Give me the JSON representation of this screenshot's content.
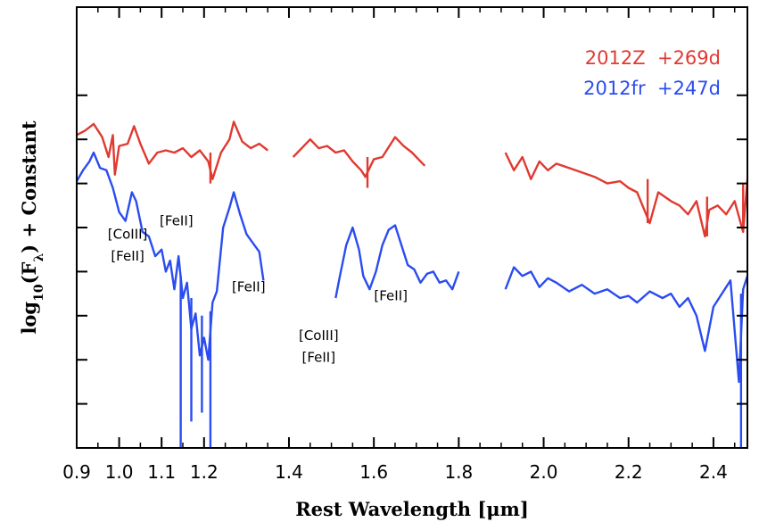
{
  "chart_data": {
    "type": "line",
    "xlabel": "Rest Wavelength [μm]",
    "ylabel": "log10(Fλ) + Constant",
    "ylabel_parts": {
      "pre": "log",
      "sub": "10",
      "mid": "(F",
      "sub2": "λ",
      "post": ") + Constant"
    },
    "xlim": [
      0.9,
      2.48
    ],
    "ylim": [
      0,
      10
    ],
    "x_ticks": [
      0.9,
      1.0,
      1.1,
      1.2,
      1.4,
      1.6,
      1.8,
      2.0,
      2.2,
      2.4
    ],
    "x_tick_labels": [
      "0.9",
      "1.0",
      "1.1",
      "1.2",
      "1.4",
      "1.6",
      "1.8",
      "2.0",
      "2.2",
      "2.4"
    ],
    "y_ticks": [
      1,
      2,
      3,
      4,
      5,
      6,
      7,
      8
    ],
    "series": [
      {
        "name": "2012Z  +269d",
        "color": "#e03a31",
        "segments": [
          [
            [
              0.9,
              7.1
            ],
            [
              0.92,
              7.2
            ],
            [
              0.94,
              7.35
            ],
            [
              0.96,
              7.05
            ],
            [
              0.975,
              6.6
            ],
            [
              0.985,
              7.1
            ],
            [
              0.99,
              6.2
            ],
            [
              1.0,
              6.85
            ],
            [
              1.02,
              6.9
            ],
            [
              1.035,
              7.3
            ],
            [
              1.05,
              6.9
            ],
            [
              1.07,
              6.45
            ],
            [
              1.09,
              6.7
            ],
            [
              1.11,
              6.75
            ],
            [
              1.13,
              6.7
            ],
            [
              1.15,
              6.8
            ],
            [
              1.17,
              6.6
            ],
            [
              1.19,
              6.75
            ],
            [
              1.21,
              6.5
            ],
            [
              1.22,
              6.1
            ],
            [
              1.24,
              6.7
            ],
            [
              1.26,
              7.0
            ],
            [
              1.27,
              7.4
            ],
            [
              1.29,
              6.95
            ],
            [
              1.31,
              6.8
            ],
            [
              1.33,
              6.9
            ],
            [
              1.35,
              6.75
            ]
          ],
          [
            [
              1.41,
              6.6
            ],
            [
              1.43,
              6.8
            ],
            [
              1.45,
              7.0
            ],
            [
              1.47,
              6.8
            ],
            [
              1.49,
              6.85
            ],
            [
              1.51,
              6.7
            ],
            [
              1.53,
              6.75
            ],
            [
              1.55,
              6.5
            ],
            [
              1.57,
              6.3
            ],
            [
              1.58,
              6.15
            ],
            [
              1.6,
              6.55
            ],
            [
              1.62,
              6.6
            ],
            [
              1.64,
              6.9
            ],
            [
              1.65,
              7.05
            ],
            [
              1.67,
              6.85
            ],
            [
              1.69,
              6.7
            ],
            [
              1.71,
              6.5
            ],
            [
              1.72,
              6.4
            ]
          ],
          [
            [
              1.91,
              6.7
            ],
            [
              1.93,
              6.3
            ],
            [
              1.95,
              6.6
            ],
            [
              1.97,
              6.1
            ],
            [
              1.99,
              6.5
            ],
            [
              2.01,
              6.3
            ],
            [
              2.03,
              6.45
            ],
            [
              2.06,
              6.35
            ],
            [
              2.09,
              6.25
            ],
            [
              2.12,
              6.15
            ],
            [
              2.15,
              6.0
            ],
            [
              2.18,
              6.05
            ],
            [
              2.2,
              5.9
            ],
            [
              2.22,
              5.8
            ],
            [
              2.25,
              5.1
            ],
            [
              2.27,
              5.8
            ],
            [
              2.3,
              5.6
            ],
            [
              2.32,
              5.5
            ],
            [
              2.34,
              5.3
            ],
            [
              2.36,
              5.6
            ],
            [
              2.38,
              4.8
            ],
            [
              2.39,
              5.4
            ],
            [
              2.41,
              5.5
            ],
            [
              2.43,
              5.3
            ],
            [
              2.45,
              5.6
            ],
            [
              2.47,
              4.9
            ],
            [
              2.48,
              6.1
            ]
          ]
        ]
      },
      {
        "name": "2012fr  +247d",
        "color": "#2a4cf0",
        "segments": [
          [
            [
              0.9,
              6.05
            ],
            [
              0.915,
              6.3
            ],
            [
              0.93,
              6.5
            ],
            [
              0.94,
              6.7
            ],
            [
              0.955,
              6.35
            ],
            [
              0.97,
              6.3
            ],
            [
              0.985,
              5.9
            ],
            [
              1.0,
              5.35
            ],
            [
              1.015,
              5.15
            ],
            [
              1.03,
              5.8
            ],
            [
              1.04,
              5.6
            ],
            [
              1.055,
              4.9
            ],
            [
              1.07,
              4.8
            ],
            [
              1.085,
              4.35
            ],
            [
              1.1,
              4.5
            ],
            [
              1.11,
              4.0
            ],
            [
              1.12,
              4.25
            ],
            [
              1.13,
              3.6
            ],
            [
              1.14,
              4.35
            ],
            [
              1.15,
              3.4
            ],
            [
              1.16,
              3.75
            ],
            [
              1.17,
              2.7
            ],
            [
              1.18,
              3.05
            ],
            [
              1.19,
              2.1
            ],
            [
              1.2,
              2.5
            ],
            [
              1.21,
              2.0
            ],
            [
              1.22,
              3.3
            ],
            [
              1.23,
              3.55
            ],
            [
              1.245,
              5.0
            ],
            [
              1.26,
              5.45
            ],
            [
              1.27,
              5.8
            ],
            [
              1.285,
              5.3
            ],
            [
              1.3,
              4.85
            ],
            [
              1.315,
              4.65
            ],
            [
              1.33,
              4.45
            ],
            [
              1.34,
              3.8
            ]
          ],
          [
            [
              1.51,
              3.4
            ],
            [
              1.52,
              3.9
            ],
            [
              1.535,
              4.6
            ],
            [
              1.55,
              5.0
            ],
            [
              1.565,
              4.5
            ],
            [
              1.575,
              3.9
            ],
            [
              1.59,
              3.6
            ],
            [
              1.605,
              4.0
            ],
            [
              1.62,
              4.6
            ],
            [
              1.635,
              4.95
            ],
            [
              1.65,
              5.05
            ],
            [
              1.665,
              4.6
            ],
            [
              1.68,
              4.15
            ],
            [
              1.695,
              4.05
            ],
            [
              1.71,
              3.75
            ],
            [
              1.725,
              3.95
            ],
            [
              1.74,
              4.0
            ],
            [
              1.755,
              3.75
            ],
            [
              1.77,
              3.8
            ],
            [
              1.785,
              3.6
            ],
            [
              1.8,
              4.0
            ]
          ],
          [
            [
              1.91,
              3.6
            ],
            [
              1.93,
              4.1
            ],
            [
              1.95,
              3.9
            ],
            [
              1.97,
              4.0
            ],
            [
              1.99,
              3.65
            ],
            [
              2.01,
              3.85
            ],
            [
              2.03,
              3.75
            ],
            [
              2.06,
              3.55
            ],
            [
              2.09,
              3.7
            ],
            [
              2.12,
              3.5
            ],
            [
              2.15,
              3.6
            ],
            [
              2.18,
              3.4
            ],
            [
              2.2,
              3.45
            ],
            [
              2.22,
              3.3
            ],
            [
              2.25,
              3.55
            ],
            [
              2.28,
              3.4
            ],
            [
              2.3,
              3.5
            ],
            [
              2.32,
              3.2
            ],
            [
              2.34,
              3.4
            ],
            [
              2.36,
              3.0
            ],
            [
              2.38,
              2.2
            ],
            [
              2.4,
              3.2
            ],
            [
              2.42,
              3.5
            ],
            [
              2.44,
              3.8
            ],
            [
              2.46,
              1.5
            ],
            [
              2.47,
              3.6
            ],
            [
              2.48,
              3.9
            ]
          ]
        ]
      }
    ],
    "dips": [
      {
        "series": 0,
        "x": 1.215,
        "y_top": 6.7,
        "y_bottom": 6.0
      },
      {
        "series": 0,
        "x": 1.585,
        "y_top": 6.6,
        "y_bottom": 5.9
      },
      {
        "series": 0,
        "x": 2.245,
        "y_top": 6.1,
        "y_bottom": 5.1
      },
      {
        "series": 0,
        "x": 2.385,
        "y_top": 5.7,
        "y_bottom": 4.8
      },
      {
        "series": 0,
        "x": 2.47,
        "y_top": 6.0,
        "y_bottom": 4.9
      },
      {
        "series": 1,
        "x": 1.145,
        "y_top": 3.9,
        "y_bottom": 0.0
      },
      {
        "series": 1,
        "x": 1.17,
        "y_top": 3.4,
        "y_bottom": 0.6
      },
      {
        "series": 1,
        "x": 1.195,
        "y_top": 3.0,
        "y_bottom": 0.8
      },
      {
        "series": 1,
        "x": 1.215,
        "y_top": 3.1,
        "y_bottom": 0.0
      },
      {
        "series": 1,
        "x": 2.465,
        "y_top": 3.5,
        "y_bottom": 0.0
      }
    ],
    "annotations": [
      {
        "text": "[CoIII]",
        "x": 1.02,
        "y": 4.75
      },
      {
        "text": "[FeII]",
        "x": 1.02,
        "y": 4.25
      },
      {
        "text": "[FeII]",
        "x": 1.135,
        "y": 5.05
      },
      {
        "text": "[FeII]",
        "x": 1.305,
        "y": 3.55
      },
      {
        "text": "[FeII]",
        "x": 1.64,
        "y": 3.35
      },
      {
        "text": "[CoIII]",
        "x": 1.47,
        "y": 2.45
      },
      {
        "text": "[FeII]",
        "x": 1.47,
        "y": 1.95
      }
    ],
    "legend_position": "top-right",
    "grid": false
  }
}
